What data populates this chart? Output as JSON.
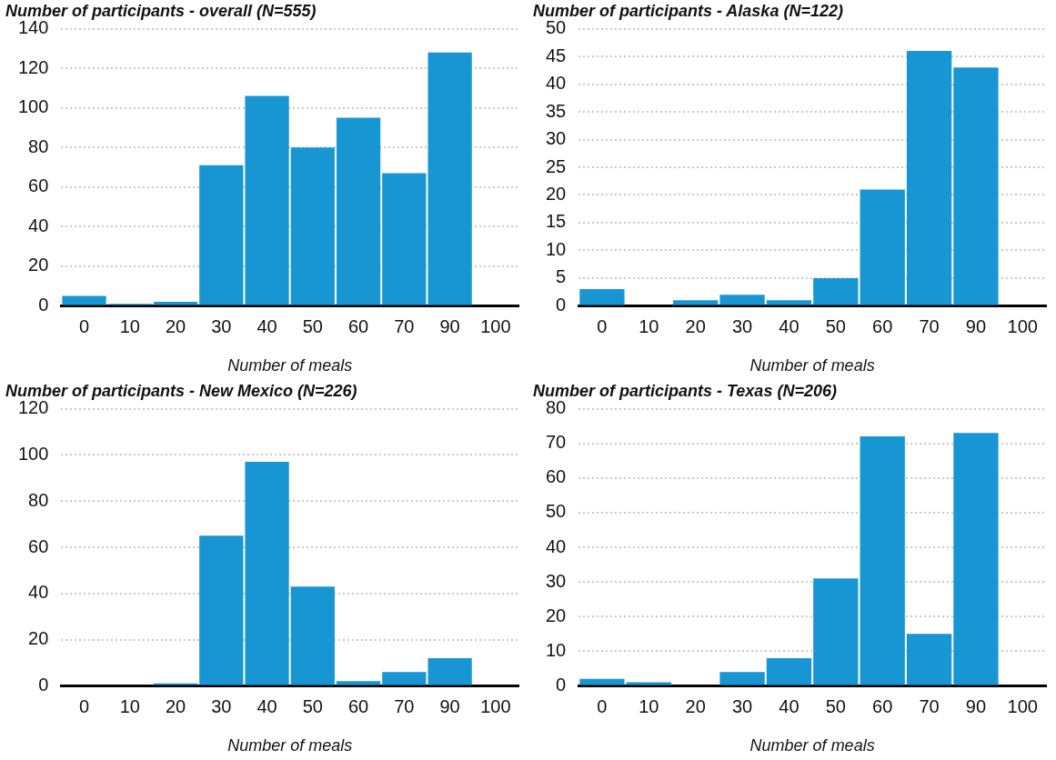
{
  "chart_data": [
    {
      "type": "bar",
      "title": "Number of participants - overall (N=555)",
      "xlabel": "Number of meals",
      "categories": [
        "0",
        "10",
        "20",
        "30",
        "40",
        "50",
        "60",
        "70",
        "90",
        "100"
      ],
      "values": [
        5,
        1,
        2,
        71,
        106,
        80,
        95,
        67,
        128,
        0
      ],
      "color": "#1896d3",
      "ylim": [
        0,
        140
      ],
      "yticks": [
        0,
        20,
        40,
        60,
        80,
        100,
        120,
        140
      ],
      "grid": "y",
      "line_style": "dotted"
    },
    {
      "type": "bar",
      "title": "Number of participants - Alaska (N=122)",
      "xlabel": "Number of meals",
      "categories": [
        "0",
        "10",
        "20",
        "30",
        "40",
        "50",
        "60",
        "70",
        "90",
        "100"
      ],
      "values": [
        3,
        0,
        1,
        2,
        1,
        5,
        21,
        46,
        43,
        0
      ],
      "color": "#1896d3",
      "ylim": [
        0,
        50
      ],
      "yticks": [
        0,
        5,
        10,
        15,
        20,
        25,
        30,
        35,
        40,
        45,
        50
      ],
      "grid": "y",
      "line_style": "dotted"
    },
    {
      "type": "bar",
      "title": "Number of participants - New Mexico (N=226)",
      "xlabel": "Number of meals",
      "categories": [
        "0",
        "10",
        "20",
        "30",
        "40",
        "50",
        "60",
        "70",
        "90",
        "100"
      ],
      "values": [
        0,
        0,
        1,
        65,
        97,
        43,
        2,
        6,
        12,
        0
      ],
      "color": "#1896d3",
      "ylim": [
        0,
        120
      ],
      "yticks": [
        0,
        20,
        40,
        60,
        80,
        100,
        120
      ],
      "grid": "y",
      "line_style": "dotted"
    },
    {
      "type": "bar",
      "title": "Number of participants - Texas (N=206)",
      "xlabel": "Number of meals",
      "categories": [
        "0",
        "10",
        "20",
        "30",
        "40",
        "50",
        "60",
        "70",
        "90",
        "100"
      ],
      "values": [
        2,
        1,
        0,
        4,
        8,
        31,
        72,
        15,
        73,
        0
      ],
      "color": "#1896d3",
      "ylim": [
        0,
        80
      ],
      "yticks": [
        0,
        10,
        20,
        30,
        40,
        50,
        60,
        70,
        80
      ],
      "grid": "y",
      "line_style": "dotted"
    }
  ]
}
